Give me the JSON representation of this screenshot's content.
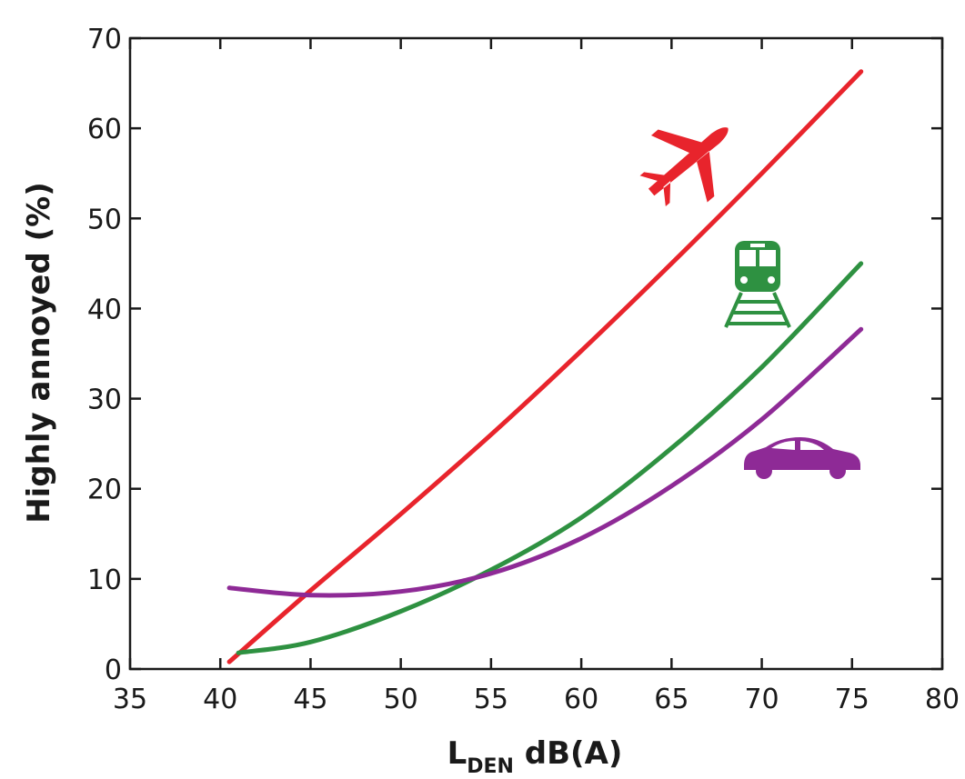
{
  "chart_data": {
    "type": "line",
    "xlabel": {
      "main": "L",
      "sub": "DEN",
      "rest": " dB(A)"
    },
    "ylabel": "Highly annoyed (%)",
    "xlim": [
      35,
      80
    ],
    "ylim": [
      0,
      70
    ],
    "x_ticks": [
      "35",
      "40",
      "45",
      "50",
      "55",
      "60",
      "65",
      "70",
      "75",
      "80"
    ],
    "y_ticks": [
      "0",
      "10",
      "20",
      "30",
      "40",
      "50",
      "60",
      "70"
    ],
    "grid": false,
    "legend": "icons",
    "series": [
      {
        "icon": "airplane-icon",
        "color": "#e8242c",
        "x": [
          40.5,
          45,
          50,
          55,
          60,
          65,
          70,
          75.5
        ],
        "y": [
          0.8,
          8.7,
          17.2,
          26.0,
          35.3,
          45.0,
          55.0,
          66.3
        ]
      },
      {
        "icon": "train-icon",
        "color": "#2e9141",
        "x": [
          41,
          45,
          50,
          55,
          60,
          65,
          70,
          75.5
        ],
        "y": [
          1.8,
          3.0,
          6.4,
          11.0,
          16.8,
          24.5,
          33.5,
          45.0
        ]
      },
      {
        "icon": "car-icon",
        "color": "#8e2a96",
        "x": [
          40.5,
          45,
          50,
          55,
          60,
          65,
          70,
          75.5
        ],
        "y": [
          9.0,
          8.2,
          8.6,
          10.6,
          14.5,
          20.3,
          27.7,
          37.7
        ]
      }
    ]
  }
}
